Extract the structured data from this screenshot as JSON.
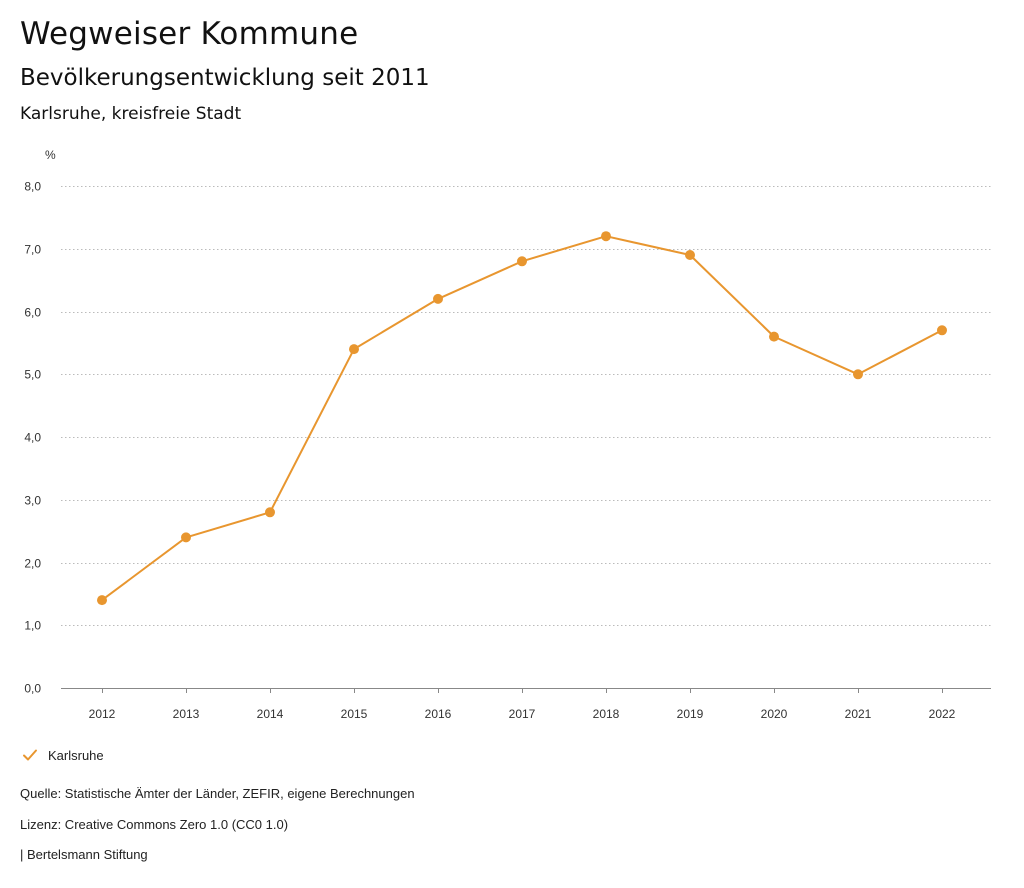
{
  "header": {
    "title": "Wegweiser Kommune",
    "subtitle": "Bevölkerungsentwicklung seit 2011",
    "region": "Karlsruhe, kreisfreie Stadt"
  },
  "chart_data": {
    "type": "line",
    "x": [
      "2012",
      "2013",
      "2014",
      "2015",
      "2016",
      "2017",
      "2018",
      "2019",
      "2020",
      "2021",
      "2022"
    ],
    "series": [
      {
        "name": "Karlsruhe",
        "color": "#e8962f",
        "values": [
          1.4,
          2.4,
          2.8,
          5.4,
          6.2,
          6.8,
          7.2,
          6.9,
          5.6,
          5.0,
          5.7
        ]
      }
    ],
    "ylabel": "%",
    "ylim": [
      0,
      8
    ],
    "yticks": [
      0,
      1,
      2,
      3,
      4,
      5,
      6,
      7,
      8
    ],
    "ytick_labels": [
      "0,0",
      "1,0",
      "2,0",
      "3,0",
      "4,0",
      "5,0",
      "6,0",
      "7,0",
      "8,0"
    ],
    "grid": true,
    "legend_position": "bottom-left"
  },
  "legend": {
    "label": "Karlsruhe",
    "icon": "check-icon"
  },
  "footer": {
    "source": "Quelle: Statistische Ämter der Länder, ZEFIR, eigene Berechnungen",
    "license": "Lizenz: Creative Commons Zero 1.0 (CC0 1.0)",
    "credit": "| Bertelsmann Stiftung"
  }
}
